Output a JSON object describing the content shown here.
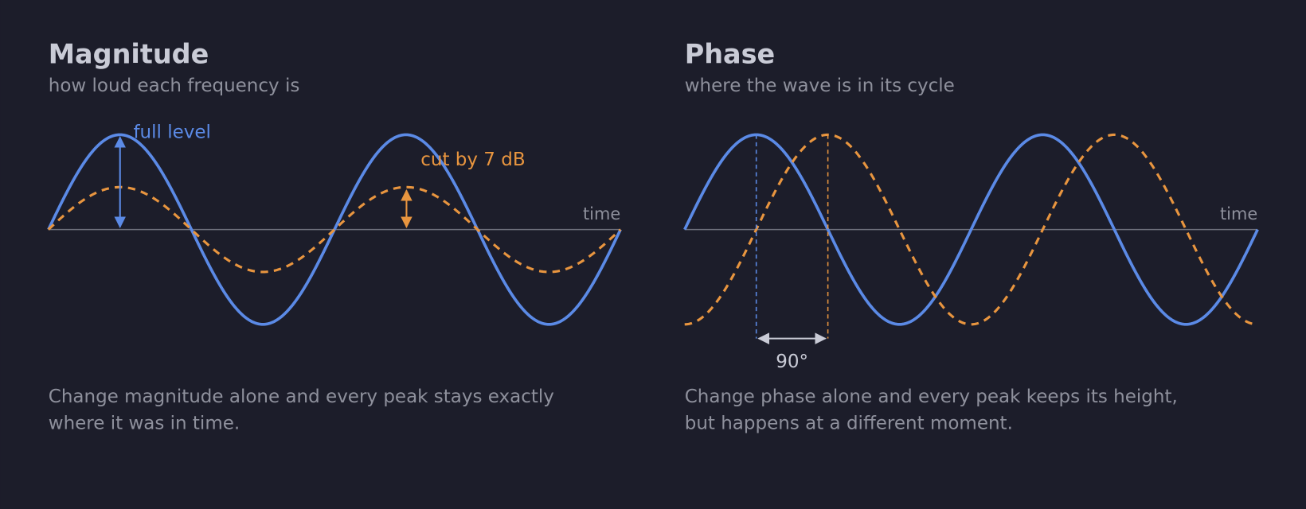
{
  "magnitude": {
    "title": "Magnitude",
    "subtitle": "how loud each frequency is",
    "axis_label": "time",
    "peak_label": "full level",
    "cut_label": "cut by 7 dB",
    "caption": [
      "Change magnitude alone and every peak stays exactly",
      "where it was in time."
    ]
  },
  "phase": {
    "title": "Phase",
    "subtitle": "where the wave is in its cycle",
    "axis_label": "time",
    "shift_label": "90°",
    "caption": [
      "Change phase alone and every peak keeps its height,",
      "but happens at a different moment."
    ]
  }
}
